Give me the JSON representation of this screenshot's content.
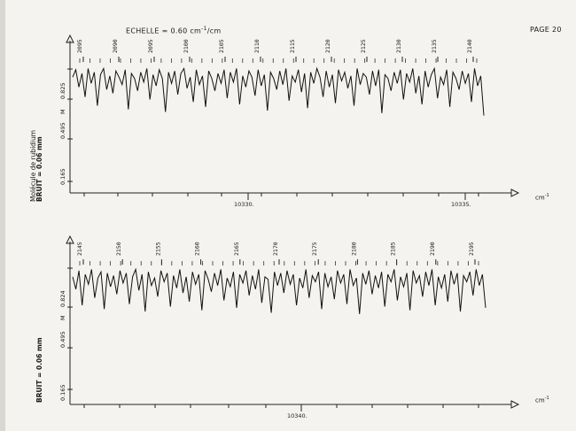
{
  "header": {
    "scale_label": "ECHELLE = 0.60 cm",
    "scale_sup": "-1",
    "scale_tail": "/cm",
    "page": "PAGE 20"
  },
  "side": {
    "molecule": "Molécule de rubidium",
    "noise": "BRUIT = 0.06 mm"
  },
  "chart_data": [
    {
      "type": "line",
      "title": "",
      "xlabel": "cm",
      "xlabel_sup": "-1",
      "ylabel": "",
      "y_ticks": [
        "0.165",
        "0.495",
        "0.825",
        "M"
      ],
      "x_ticks": [
        {
          "value": 10330,
          "label": "10330."
        },
        {
          "value": 10335,
          "label": "10335."
        }
      ],
      "line_numbers": [
        "2095",
        "2090",
        "2095",
        "2100",
        "2105",
        "2110",
        "2115",
        "2120",
        "2125",
        "2130",
        "2135",
        "2140"
      ],
      "series": [
        {
          "values": [
            0.2,
            0.8,
            -0.6,
            0.5,
            -1.4,
            0.9,
            -0.3,
            0.6,
            -2.1,
            0.4,
            0.9,
            -0.8,
            0.3,
            -1.1,
            0.7,
            0.2,
            -0.4,
            0.8,
            -2.4,
            0.5,
            0.1,
            -0.9,
            0.6,
            -0.2,
            0.9,
            -1.6,
            0.4,
            -0.5,
            0.8,
            0.1,
            -2.6,
            0.6,
            -0.3,
            0.7,
            -1.2,
            0.5,
            0.9,
            -0.7,
            0.2,
            -1.8,
            0.8,
            -0.4,
            0.3,
            -2.2,
            0.7,
            0.1,
            -0.9,
            0.5,
            -0.3,
            0.8,
            -1.5,
            0.6,
            -0.2,
            0.9,
            -2.0,
            0.3,
            -0.6,
            0.7,
            0.2,
            -1.3,
            0.8,
            -0.5,
            0.4,
            -2.5,
            0.6,
            0.1,
            -0.8,
            0.7,
            -0.4,
            0.9,
            -1.7,
            0.3,
            -0.2,
            0.8,
            -1.0,
            0.5,
            -2.3,
            0.6,
            -0.3,
            0.9,
            0.2,
            -1.4,
            0.7,
            -0.6,
            0.4,
            -1.9,
            0.8,
            -0.1,
            0.6,
            -0.7,
            0.3,
            -2.1,
            0.9,
            -0.4,
            0.5,
            0.2,
            -1.2,
            0.7,
            -0.5,
            0.8,
            -2.7,
            0.4,
            0.1,
            -0.9,
            0.6,
            -0.3,
            0.8,
            -1.6,
            0.5,
            -0.2,
            0.9,
            -1.1,
            0.3,
            -2.0,
            0.7,
            -0.6,
            0.4,
            0.9,
            -1.5,
            0.2,
            -0.4,
            0.8,
            -2.2,
            0.6,
            0.1,
            -0.8,
            0.7,
            -0.3,
            0.5,
            -1.8,
            0.9,
            -0.5,
            0.3,
            -2.9
          ]
        }
      ]
    },
    {
      "type": "line",
      "title": "",
      "xlabel": "cm",
      "xlabel_sup": "-1",
      "ylabel": "",
      "y_ticks": [
        "0.165",
        "0.495",
        "0.824",
        "M"
      ],
      "x_ticks": [
        {
          "value": 10340,
          "label": "10340."
        }
      ],
      "line_numbers": [
        "2145",
        "2150",
        "2155",
        "2160",
        "2165",
        "2170",
        "2175",
        "2180",
        "2185",
        "2190",
        "2195"
      ],
      "series": [
        {
          "values": [
            0.3,
            -0.7,
            0.8,
            -2.0,
            0.5,
            -0.3,
            0.9,
            -1.4,
            0.2,
            0.7,
            -2.3,
            0.6,
            -0.5,
            0.4,
            -1.1,
            0.8,
            -0.2,
            0.6,
            -1.9,
            0.3,
            0.9,
            -0.8,
            0.5,
            -2.5,
            0.7,
            -0.4,
            0.2,
            -1.3,
            0.8,
            -0.1,
            0.6,
            -2.1,
            0.4,
            -0.6,
            0.9,
            -1.0,
            0.3,
            -1.7,
            0.7,
            -0.3,
            0.5,
            -2.4,
            0.8,
            0.1,
            -0.9,
            0.6,
            -0.4,
            0.9,
            -1.6,
            0.2,
            -0.5,
            0.7,
            -2.2,
            0.5,
            -0.2,
            0.8,
            -1.2,
            0.4,
            -0.7,
            0.9,
            -1.8,
            0.3,
            0.1,
            -2.6,
            0.7,
            -0.4,
            0.6,
            -1.0,
            0.8,
            -0.3,
            0.5,
            -2.0,
            0.2,
            -0.6,
            0.9,
            -1.4,
            0.4,
            -0.1,
            0.7,
            -2.3,
            0.6,
            -0.5,
            0.3,
            -1.5,
            0.8,
            -0.2,
            0.5,
            -1.9,
            0.9,
            -0.4,
            0.2,
            -2.7,
            0.6,
            -0.3,
            0.8,
            -1.1,
            0.4,
            -0.6,
            0.7,
            -2.1,
            0.5,
            -0.1,
            0.9,
            -1.6,
            0.3,
            -0.5,
            0.6,
            -2.4,
            0.8,
            -0.2,
            0.4,
            -1.3,
            0.7,
            -0.4,
            0.9,
            -2.0,
            0.3,
            -0.6,
            0.5,
            -1.7,
            0.8,
            -0.3,
            0.6,
            -2.5,
            0.4,
            -0.1,
            0.7,
            -1.2,
            0.9,
            -0.4,
            0.5,
            -2.2
          ]
        }
      ]
    }
  ]
}
